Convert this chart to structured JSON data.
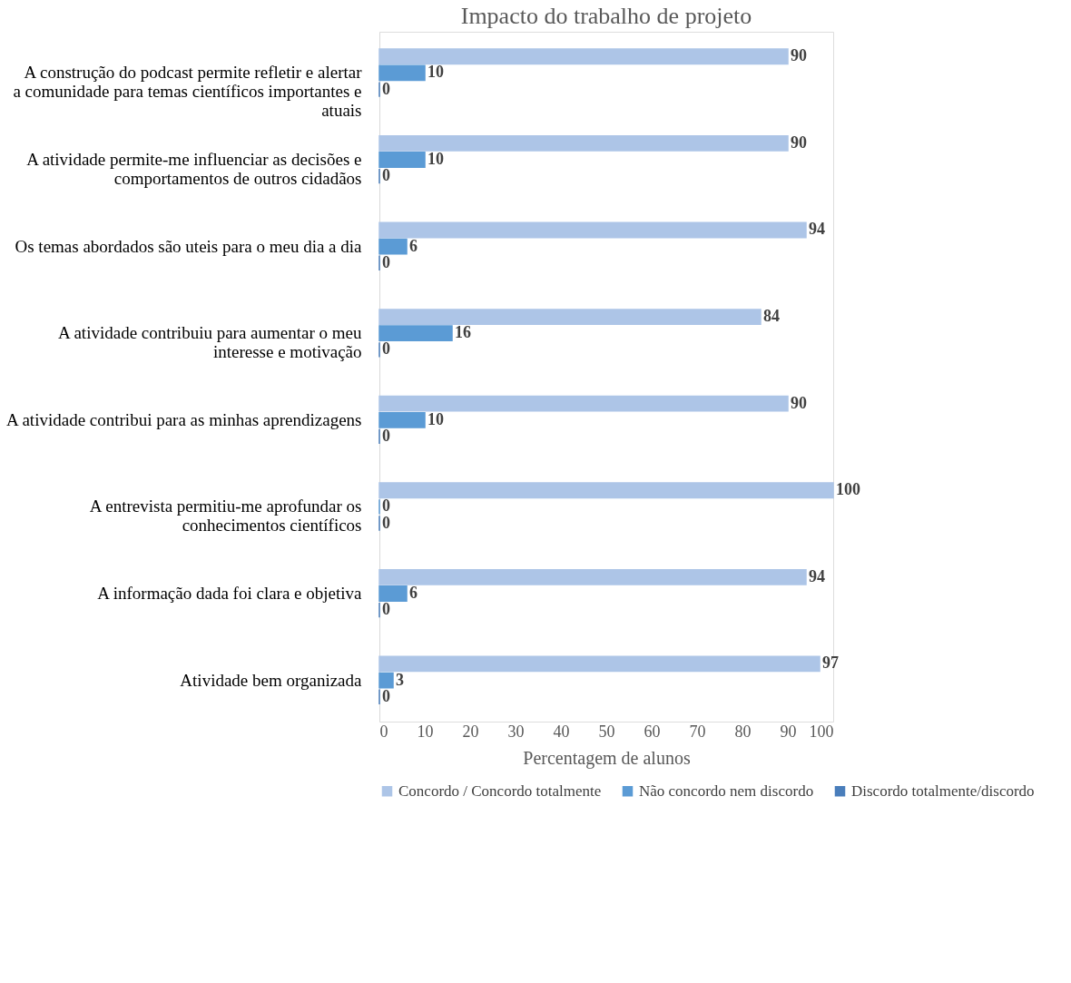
{
  "chart_data": {
    "type": "bar",
    "orientation": "horizontal",
    "title": "Impacto do trabalho de projeto",
    "xlabel": "Percentagem de alunos",
    "categories": [
      "A construção do podcast permite refletir e alertar a comunidade para temas científicos importantes e atuais",
      "A atividade permite-me influenciar as decisões e comportamentos de outros cidadãos",
      "Os temas abordados são uteis para o meu dia a dia",
      "A atividade contribuiu para aumentar o meu interesse e motivação",
      "A atividade contribui para as minhas aprendizagens",
      "A entrevista permitiu-me aprofundar os conhecimentos científicos",
      "A informação dada  foi clara e objetiva",
      "Atividade bem organizada"
    ],
    "series": [
      {
        "name": "Concordo / Concordo totalmente",
        "color": "#adc5e7",
        "values": [
          90,
          90,
          94,
          84,
          90,
          100,
          94,
          97
        ]
      },
      {
        "name": "Não concordo nem discordo",
        "color": "#5b9bd5",
        "values": [
          10,
          10,
          6,
          16,
          10,
          0,
          6,
          3
        ]
      },
      {
        "name": "Discordo totalmente/discordo",
        "color": "#4a7ebb",
        "values": [
          0,
          0,
          0,
          0,
          0,
          0,
          0,
          0
        ]
      }
    ],
    "xlim": [
      0,
      100
    ],
    "xticks": [
      0,
      10,
      20,
      30,
      40,
      50,
      60,
      70,
      80,
      90,
      100
    ],
    "data_labels": true,
    "grid": false,
    "legend": "bottom"
  }
}
